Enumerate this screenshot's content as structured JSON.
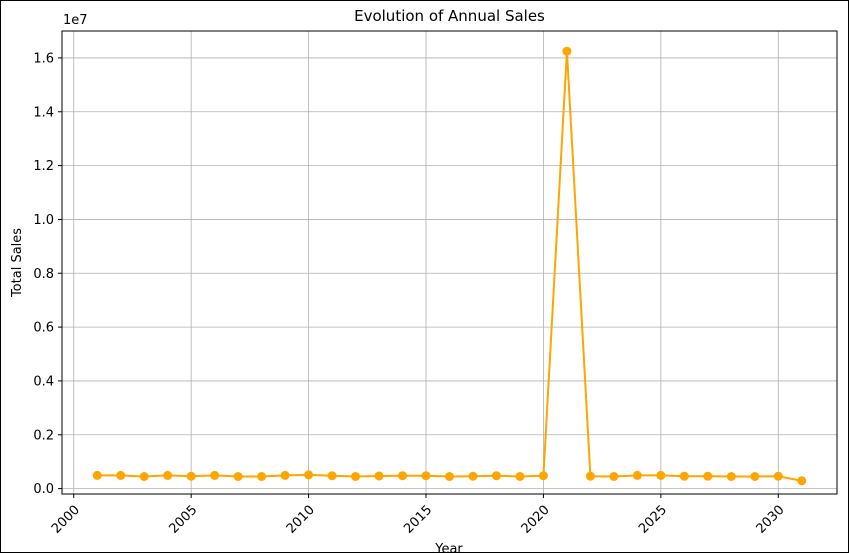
{
  "chart_data": {
    "type": "line",
    "title": "Evolution of Annual Sales",
    "xlabel": "Year",
    "ylabel": "Total Sales",
    "offset_label": "1e7",
    "xlim": [
      1999.5,
      2032.5
    ],
    "ylim": [
      -200000,
      17000000
    ],
    "xticks": [
      2000,
      2005,
      2010,
      2015,
      2020,
      2025,
      2030
    ],
    "xtick_labels": [
      "2000",
      "2005",
      "2010",
      "2015",
      "2020",
      "2025",
      "2030"
    ],
    "yticks": [
      0,
      2000000,
      4000000,
      6000000,
      8000000,
      10000000,
      12000000,
      14000000,
      16000000
    ],
    "ytick_labels": [
      "0.0",
      "0.2",
      "0.4",
      "0.6",
      "0.8",
      "1.0",
      "1.2",
      "1.4",
      "1.6"
    ],
    "grid": true,
    "series": [
      {
        "color": "#ffa500",
        "marker": "circle",
        "x": [
          2001,
          2002,
          2003,
          2004,
          2005,
          2006,
          2007,
          2008,
          2009,
          2010,
          2011,
          2012,
          2013,
          2014,
          2015,
          2016,
          2017,
          2018,
          2019,
          2020,
          2021,
          2022,
          2023,
          2024,
          2025,
          2026,
          2027,
          2028,
          2029,
          2030,
          2031
        ],
        "y": [
          490000,
          490000,
          450000,
          490000,
          460000,
          490000,
          450000,
          450000,
          490000,
          510000,
          480000,
          450000,
          470000,
          480000,
          480000,
          450000,
          460000,
          480000,
          450000,
          480000,
          16250000,
          460000,
          450000,
          490000,
          490000,
          460000,
          460000,
          450000,
          450000,
          460000,
          290000
        ]
      }
    ]
  }
}
